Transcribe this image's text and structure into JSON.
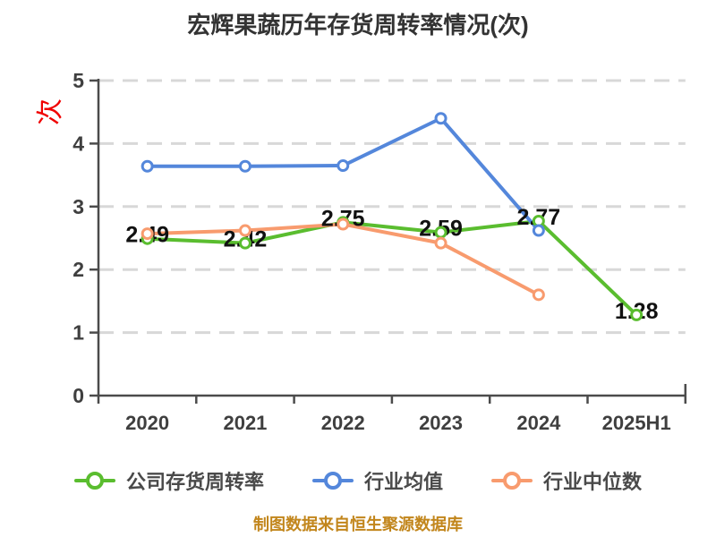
{
  "chart_data": {
    "type": "line",
    "title": "宏辉果蔬历年存货周转率情况(次)",
    "y_unit_label": "次",
    "footer": "制图数据来自恒生聚源数据库",
    "categories": [
      "2020",
      "2021",
      "2022",
      "2023",
      "2024",
      "2025H1"
    ],
    "series": [
      {
        "name": "公司存货周转率",
        "color": "#5abd2f",
        "labeled": true,
        "values": [
          2.49,
          2.42,
          2.75,
          2.59,
          2.77,
          1.28
        ]
      },
      {
        "name": "行业均值",
        "color": "#5487db",
        "labeled": false,
        "values": [
          3.64,
          3.64,
          3.65,
          4.4,
          2.62,
          null
        ]
      },
      {
        "name": "行业中位数",
        "color": "#f89b6e",
        "labeled": false,
        "values": [
          2.57,
          2.62,
          2.72,
          2.42,
          1.6,
          null
        ]
      }
    ],
    "ylim": [
      0,
      5
    ],
    "yticks": [
      0,
      1,
      2,
      3,
      4,
      5
    ],
    "grid": "horizontal-dashed",
    "legend_position": "bottom",
    "colors": {
      "axis": "#4b4b4b",
      "grid": "#d8d8d8",
      "tick_label": "#3f3f3f",
      "data_label": "#111111",
      "title": "#333333",
      "footer": "#c2861c",
      "y_unit": "#f00000",
      "marker_fill": "#ffffff"
    }
  }
}
